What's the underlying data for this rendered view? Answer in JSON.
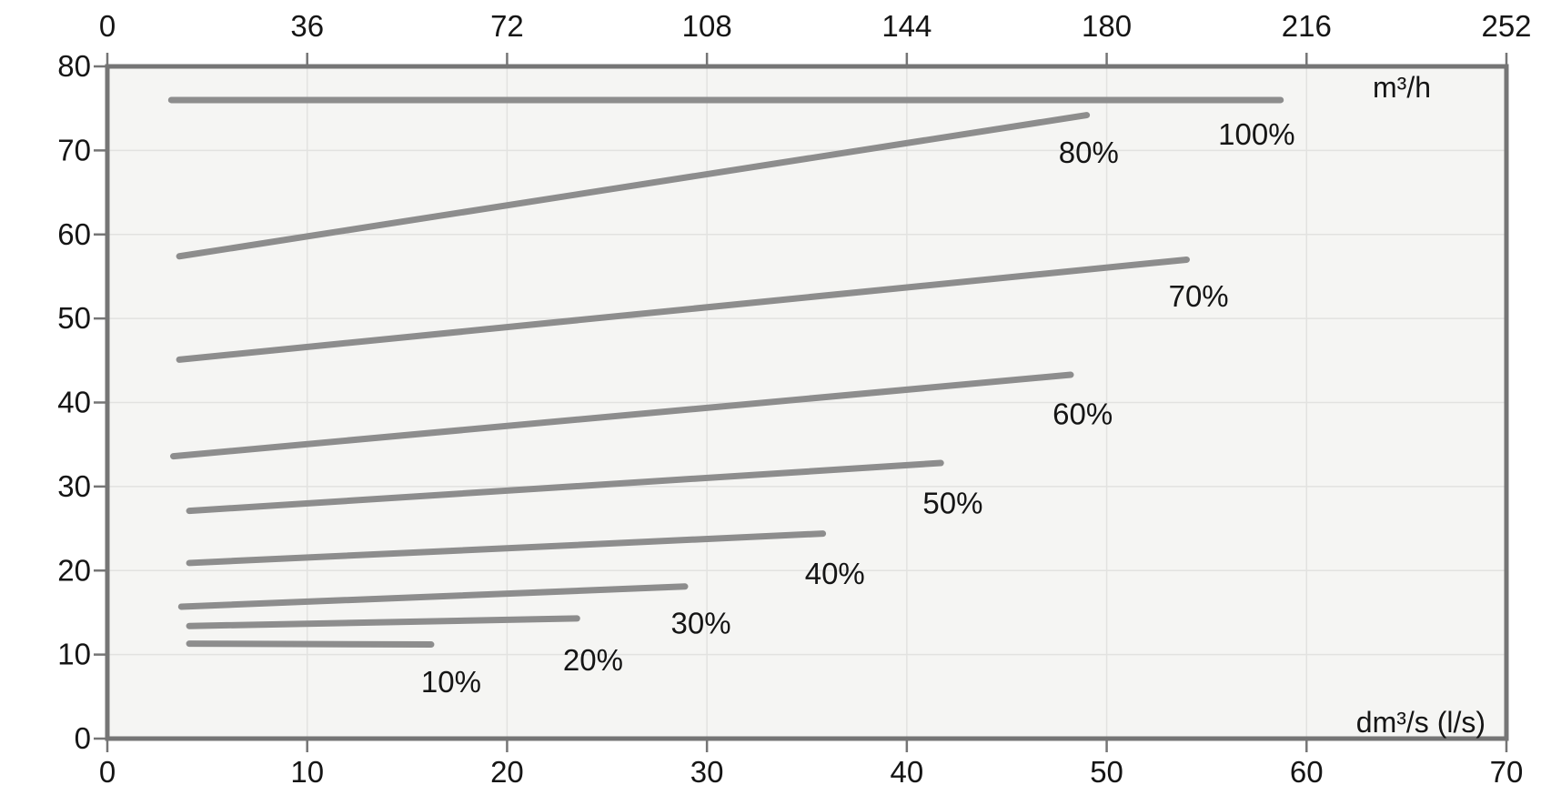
{
  "chart_data": {
    "type": "line",
    "title": "",
    "x_axis_bottom": {
      "unit_label": "dm³/s (l/s)",
      "ticks": [
        0,
        10,
        20,
        30,
        40,
        50,
        60,
        70
      ],
      "range": [
        0,
        70
      ]
    },
    "x_axis_top": {
      "unit_label": "m³/h",
      "ticks": [
        0,
        36,
        72,
        108,
        144,
        180,
        216,
        252
      ],
      "range": [
        0,
        252
      ]
    },
    "y_axis": {
      "unit_label": "",
      "ticks": [
        0,
        10,
        20,
        30,
        40,
        50,
        60,
        70,
        80
      ],
      "range": [
        0,
        80
      ]
    },
    "grid": true,
    "legend_position": "inline-labels",
    "series": [
      {
        "name": "10%",
        "points": [
          [
            4.1,
            11.3
          ],
          [
            16.2,
            11.2
          ]
        ],
        "label": "10%",
        "label_pos": [
          17.2,
          6.7
        ]
      },
      {
        "name": "20%",
        "points": [
          [
            4.1,
            13.4
          ],
          [
            23.5,
            14.3
          ]
        ],
        "label": "20%",
        "label_pos": [
          24.3,
          9.3
        ]
      },
      {
        "name": "30%",
        "points": [
          [
            3.7,
            15.7
          ],
          [
            28.9,
            18.1
          ]
        ],
        "label": "30%",
        "label_pos": [
          29.7,
          13.7
        ]
      },
      {
        "name": "40%",
        "points": [
          [
            4.1,
            20.9
          ],
          [
            35.8,
            24.4
          ]
        ],
        "label": "40%",
        "label_pos": [
          36.4,
          19.6
        ]
      },
      {
        "name": "50%",
        "points": [
          [
            4.1,
            27.1
          ],
          [
            41.7,
            32.8
          ]
        ],
        "label": "50%",
        "label_pos": [
          42.3,
          28.0
        ]
      },
      {
        "name": "60%",
        "points": [
          [
            3.3,
            33.6
          ],
          [
            48.2,
            43.3
          ]
        ],
        "label": "60%",
        "label_pos": [
          48.8,
          38.6
        ]
      },
      {
        "name": "70%",
        "points": [
          [
            3.6,
            45.1
          ],
          [
            54.0,
            57.0
          ]
        ],
        "label": "70%",
        "label_pos": [
          54.6,
          52.6
        ]
      },
      {
        "name": "80%",
        "points": [
          [
            3.6,
            57.4
          ],
          [
            49.0,
            74.2
          ]
        ],
        "label": "80%",
        "label_pos": [
          49.1,
          69.7
        ]
      },
      {
        "name": "100%",
        "points": [
          [
            3.2,
            76.0
          ],
          [
            58.7,
            76.0
          ]
        ],
        "label": "100%",
        "label_pos": [
          57.5,
          71.9
        ]
      }
    ],
    "colors": {
      "line": "#8d8d8d",
      "border": "#757575",
      "grid": "#e2e2e0",
      "plot_background": "#f5f5f3",
      "page_background": "#ffffff",
      "text": "#151515"
    }
  }
}
